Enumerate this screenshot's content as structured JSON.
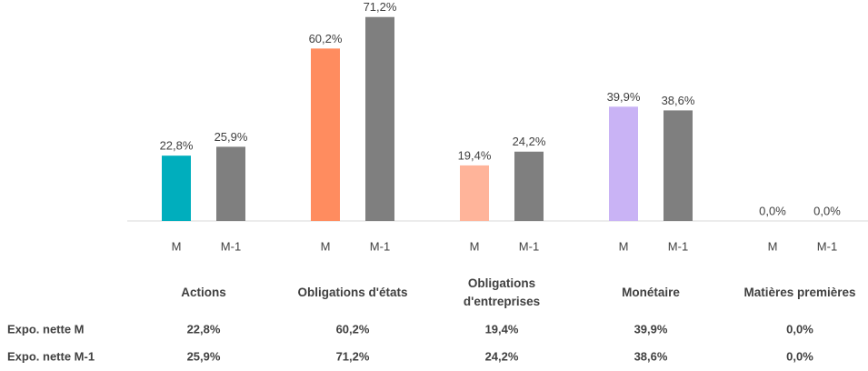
{
  "chart_data": {
    "type": "bar",
    "categories": [
      "Actions",
      "Obligations d'états",
      "Obligations d'entreprises",
      "Monétaire",
      "Matières premières"
    ],
    "series": [
      {
        "name": "M",
        "colors": [
          "#00aebd",
          "#ff8c5f",
          "#ffb49a",
          "#c9b3f5",
          "#c9b3f5"
        ],
        "values": [
          22.8,
          60.2,
          19.4,
          39.9,
          0.0
        ],
        "value_labels": [
          "22,8%",
          "60,2%",
          "19,4%",
          "39,9%",
          "0,0%"
        ]
      },
      {
        "name": "M-1",
        "color": "#7f7f7f",
        "values": [
          25.9,
          71.2,
          24.2,
          38.6,
          0.0
        ],
        "value_labels": [
          "25,9%",
          "71,2%",
          "24,2%",
          "38,6%",
          "0,0%"
        ]
      }
    ],
    "table": {
      "row_labels": [
        "Expo. nette M",
        "Expo. nette M-1"
      ]
    }
  }
}
